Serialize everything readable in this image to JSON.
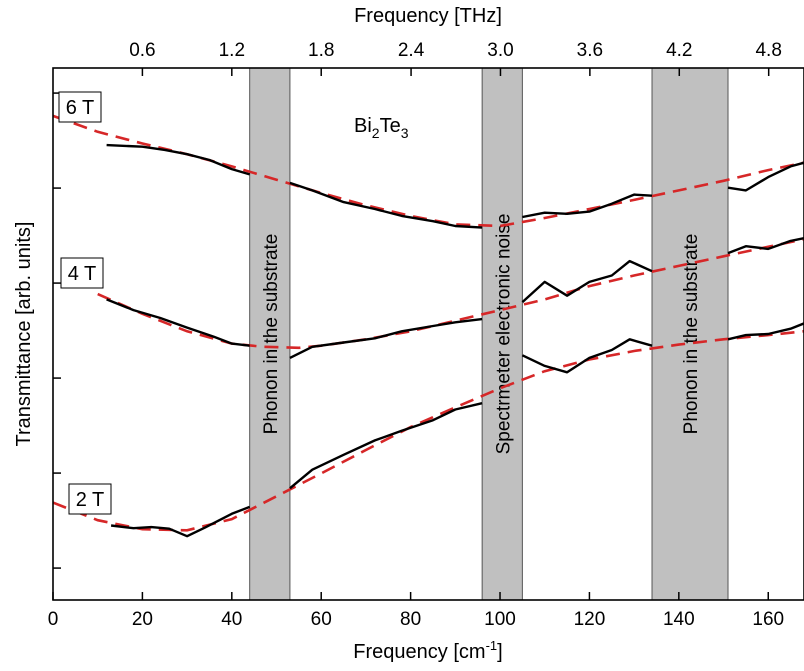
{
  "chart_data": {
    "type": "line",
    "title": "",
    "compound_label": {
      "main": "Bi",
      "sub1": "2",
      "mid": "Te",
      "sub2": "3"
    },
    "xlabel": {
      "main": "Frequency [cm",
      "sup": "-1",
      "end": "]"
    },
    "xlabel_top": "Frequency [THz]",
    "ylabel": "Transmittance [arb. units]",
    "xlim": [
      0,
      168
    ],
    "ylim": [
      0,
      1
    ],
    "grid": false,
    "x_ticks": [
      {
        "value": 0,
        "label": "0"
      },
      {
        "value": 20,
        "label": "20"
      },
      {
        "value": 40,
        "label": "40"
      },
      {
        "value": 60,
        "label": "60"
      },
      {
        "value": 80,
        "label": "80"
      },
      {
        "value": 100,
        "label": "100"
      },
      {
        "value": 120,
        "label": "120"
      },
      {
        "value": 140,
        "label": "140"
      },
      {
        "value": 160,
        "label": "160"
      }
    ],
    "x_top_ticks": [
      {
        "label": "0.6",
        "cm": 20.0
      },
      {
        "label": "1.2",
        "cm": 40.0
      },
      {
        "label": "1.8",
        "cm": 60.0
      },
      {
        "label": "2.4",
        "cm": 80.1
      },
      {
        "label": "3.0",
        "cm": 100.1
      },
      {
        "label": "3.6",
        "cm": 120.1
      },
      {
        "label": "4.2",
        "cm": 140.1
      },
      {
        "label": "4.8",
        "cm": 160.1
      }
    ],
    "shaded_bands": [
      {
        "x": [
          44,
          53
        ],
        "label": "Phonon in the substrate"
      },
      {
        "x": [
          96,
          105
        ],
        "label": "Spectrmeter electronic noise"
      },
      {
        "x": [
          134,
          151
        ],
        "label": "Phonon in the substrate"
      }
    ],
    "series": [
      {
        "name": "6 T",
        "color": "#000000",
        "fit_color": "#d62728",
        "data": [
          [
            12,
            0.855
          ],
          [
            20,
            0.852
          ],
          [
            25,
            0.846
          ],
          [
            30,
            0.838
          ],
          [
            35,
            0.827
          ],
          [
            40,
            0.81
          ],
          [
            44,
            0.8
          ],
          [
            53,
            0.784
          ],
          [
            58,
            0.77
          ],
          [
            65,
            0.748
          ],
          [
            72,
            0.735
          ],
          [
            78,
            0.722
          ],
          [
            85,
            0.712
          ],
          [
            90,
            0.703
          ],
          [
            96,
            0.7
          ],
          [
            105,
            0.72
          ],
          [
            110,
            0.728
          ],
          [
            115,
            0.726
          ],
          [
            120,
            0.73
          ],
          [
            125,
            0.745
          ],
          [
            130,
            0.762
          ],
          [
            134,
            0.76
          ],
          [
            151,
            0.775
          ],
          [
            155,
            0.77
          ],
          [
            160,
            0.795
          ],
          [
            165,
            0.815
          ],
          [
            168,
            0.822
          ]
        ],
        "fit": [
          [
            0,
            0.91
          ],
          [
            10,
            0.88
          ],
          [
            20,
            0.858
          ],
          [
            30,
            0.838
          ],
          [
            40,
            0.815
          ],
          [
            50,
            0.79
          ],
          [
            60,
            0.765
          ],
          [
            70,
            0.742
          ],
          [
            80,
            0.722
          ],
          [
            90,
            0.706
          ],
          [
            100,
            0.703
          ],
          [
            110,
            0.718
          ],
          [
            120,
            0.735
          ],
          [
            130,
            0.752
          ],
          [
            140,
            0.77
          ],
          [
            150,
            0.788
          ],
          [
            160,
            0.808
          ],
          [
            168,
            0.822
          ]
        ]
      },
      {
        "name": "4 T",
        "color": "#000000",
        "fit_color": "#d62728",
        "data": [
          [
            12,
            0.565
          ],
          [
            18,
            0.545
          ],
          [
            24,
            0.53
          ],
          [
            30,
            0.512
          ],
          [
            36,
            0.495
          ],
          [
            40,
            0.482
          ],
          [
            44,
            0.478
          ],
          [
            53,
            0.455
          ],
          [
            58,
            0.476
          ],
          [
            65,
            0.484
          ],
          [
            72,
            0.492
          ],
          [
            78,
            0.505
          ],
          [
            85,
            0.515
          ],
          [
            90,
            0.522
          ],
          [
            96,
            0.528
          ],
          [
            105,
            0.56
          ],
          [
            110,
            0.598
          ],
          [
            115,
            0.572
          ],
          [
            120,
            0.598
          ],
          [
            125,
            0.61
          ],
          [
            129,
            0.637
          ],
          [
            134,
            0.618
          ],
          [
            151,
            0.652
          ],
          [
            155,
            0.665
          ],
          [
            160,
            0.66
          ],
          [
            165,
            0.675
          ],
          [
            168,
            0.68
          ]
        ],
        "fit": [
          [
            10,
            0.575
          ],
          [
            20,
            0.538
          ],
          [
            30,
            0.505
          ],
          [
            40,
            0.482
          ],
          [
            47,
            0.476
          ],
          [
            55,
            0.474
          ],
          [
            60,
            0.478
          ],
          [
            70,
            0.49
          ],
          [
            80,
            0.505
          ],
          [
            90,
            0.525
          ],
          [
            100,
            0.545
          ],
          [
            110,
            0.565
          ],
          [
            120,
            0.59
          ],
          [
            130,
            0.61
          ],
          [
            140,
            0.628
          ],
          [
            150,
            0.646
          ],
          [
            160,
            0.664
          ],
          [
            168,
            0.678
          ]
        ]
      },
      {
        "name": "2 T",
        "color": "#000000",
        "fit_color": "#d62728",
        "data": [
          [
            13,
            0.14
          ],
          [
            18,
            0.135
          ],
          [
            22,
            0.137
          ],
          [
            26,
            0.134
          ],
          [
            30,
            0.12
          ],
          [
            34,
            0.136
          ],
          [
            40,
            0.162
          ],
          [
            44,
            0.175
          ],
          [
            53,
            0.21
          ],
          [
            58,
            0.245
          ],
          [
            65,
            0.273
          ],
          [
            72,
            0.3
          ],
          [
            78,
            0.318
          ],
          [
            85,
            0.338
          ],
          [
            90,
            0.358
          ],
          [
            96,
            0.37
          ],
          [
            105,
            0.46
          ],
          [
            110,
            0.44
          ],
          [
            115,
            0.428
          ],
          [
            120,
            0.455
          ],
          [
            125,
            0.47
          ],
          [
            129,
            0.49
          ],
          [
            134,
            0.478
          ],
          [
            151,
            0.49
          ],
          [
            155,
            0.498
          ],
          [
            160,
            0.5
          ],
          [
            165,
            0.51
          ],
          [
            168,
            0.52
          ]
        ],
        "fit": [
          [
            0,
            0.183
          ],
          [
            10,
            0.15
          ],
          [
            20,
            0.133
          ],
          [
            30,
            0.131
          ],
          [
            40,
            0.152
          ],
          [
            50,
            0.195
          ],
          [
            60,
            0.238
          ],
          [
            70,
            0.282
          ],
          [
            80,
            0.325
          ],
          [
            90,
            0.362
          ],
          [
            100,
            0.398
          ],
          [
            110,
            0.43
          ],
          [
            120,
            0.452
          ],
          [
            130,
            0.468
          ],
          [
            140,
            0.48
          ],
          [
            150,
            0.49
          ],
          [
            160,
            0.498
          ],
          [
            168,
            0.505
          ]
        ]
      }
    ]
  }
}
